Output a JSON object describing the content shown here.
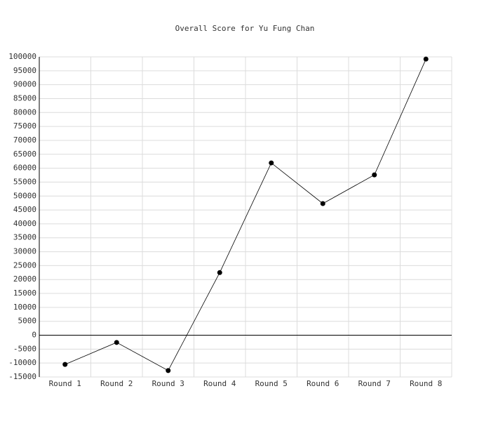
{
  "chart_data": {
    "type": "line",
    "title": "Overall Score for Yu Fung Chan",
    "categories": [
      "Round 1",
      "Round 2",
      "Round 3",
      "Round 4",
      "Round 5",
      "Round 6",
      "Round 7",
      "Round 8"
    ],
    "series": [
      {
        "color": "#000000",
        "values": [
          -10500,
          -2600,
          -12700,
          22500,
          61900,
          47300,
          57600,
          99200
        ]
      }
    ],
    "ylim": [
      -15000,
      100000
    ],
    "yticks": [
      -15000,
      -10000,
      -5000,
      0,
      5000,
      10000,
      15000,
      20000,
      25000,
      30000,
      35000,
      40000,
      45000,
      50000,
      55000,
      60000,
      65000,
      70000,
      75000,
      80000,
      85000,
      90000,
      95000,
      100000
    ],
    "grid": true
  }
}
